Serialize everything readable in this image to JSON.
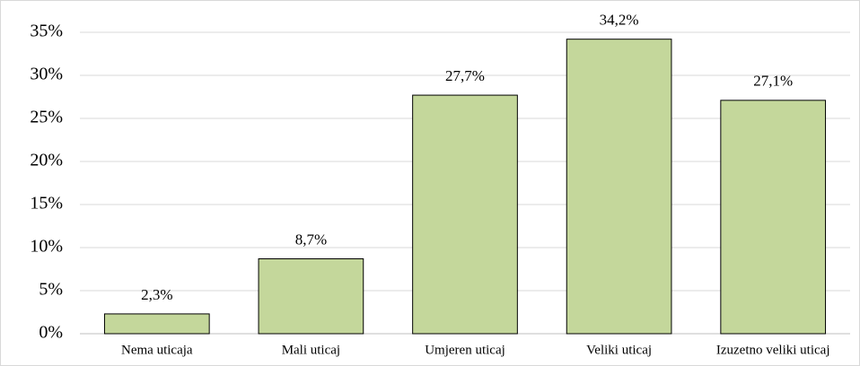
{
  "chart_data": {
    "type": "bar",
    "categories": [
      "Nema uticaja",
      "Mali uticaj",
      "Umjeren uticaj",
      "Veliki uticaj",
      "Izuzetno veliki uticaj"
    ],
    "values": [
      2.3,
      8.7,
      27.7,
      34.2,
      27.1
    ],
    "value_labels": [
      "2,3%",
      "8,7%",
      "27,7%",
      "34,2%",
      "27,1%"
    ],
    "color": "#c4d79b",
    "ylim": [
      0,
      35
    ],
    "yticks": [
      {
        "value": 0,
        "label": "0%"
      },
      {
        "value": 5,
        "label": "5%"
      },
      {
        "value": 10,
        "label": "10%"
      },
      {
        "value": 15,
        "label": "15%"
      },
      {
        "value": 20,
        "label": "20%"
      },
      {
        "value": 25,
        "label": "25%"
      },
      {
        "value": 30,
        "label": "30%"
      },
      {
        "value": 35,
        "label": "35%"
      }
    ],
    "grid": true
  }
}
